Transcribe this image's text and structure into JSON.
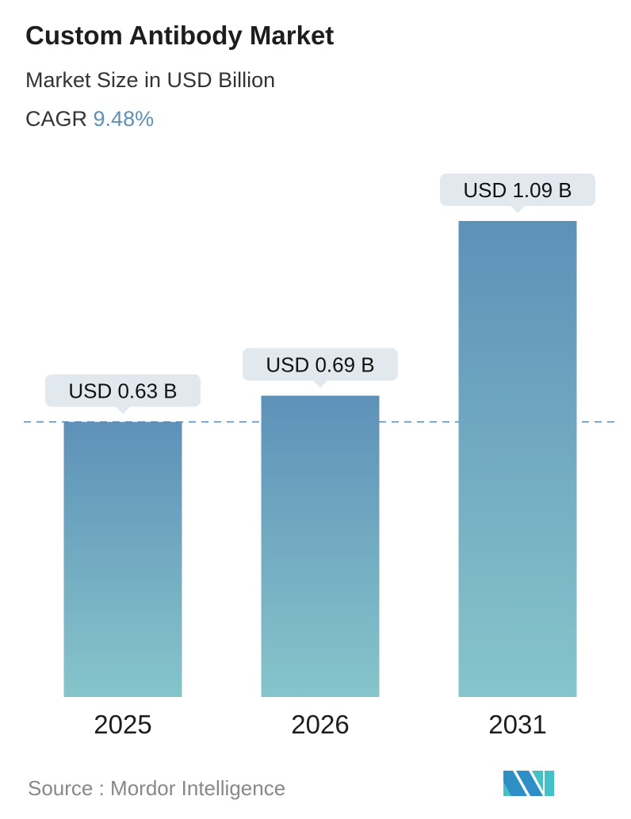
{
  "header": {
    "title": "Custom Antibody Market",
    "subtitle": "Market Size in USD Billion",
    "cagr_label": "CAGR",
    "cagr_value": "9.48%"
  },
  "footer": {
    "source": "Source :  Mordor Intelligence"
  },
  "chart_data": {
    "type": "bar",
    "categories": [
      "2025",
      "2026",
      "2031"
    ],
    "values": [
      0.63,
      0.69,
      1.09
    ],
    "data_labels": [
      "USD 0.63 B",
      "USD 0.69 B",
      "USD 1.09 B"
    ],
    "ylim": [
      0,
      1.09
    ],
    "reference_line": 0.63,
    "grid": false,
    "colors": {
      "bar_top": "#5e91b8",
      "bar_bottom": "#86c5cb",
      "label_bg": "#e2e9ee",
      "dashed_line": "#5a86a8",
      "cagr": "#5f8fb8"
    }
  }
}
